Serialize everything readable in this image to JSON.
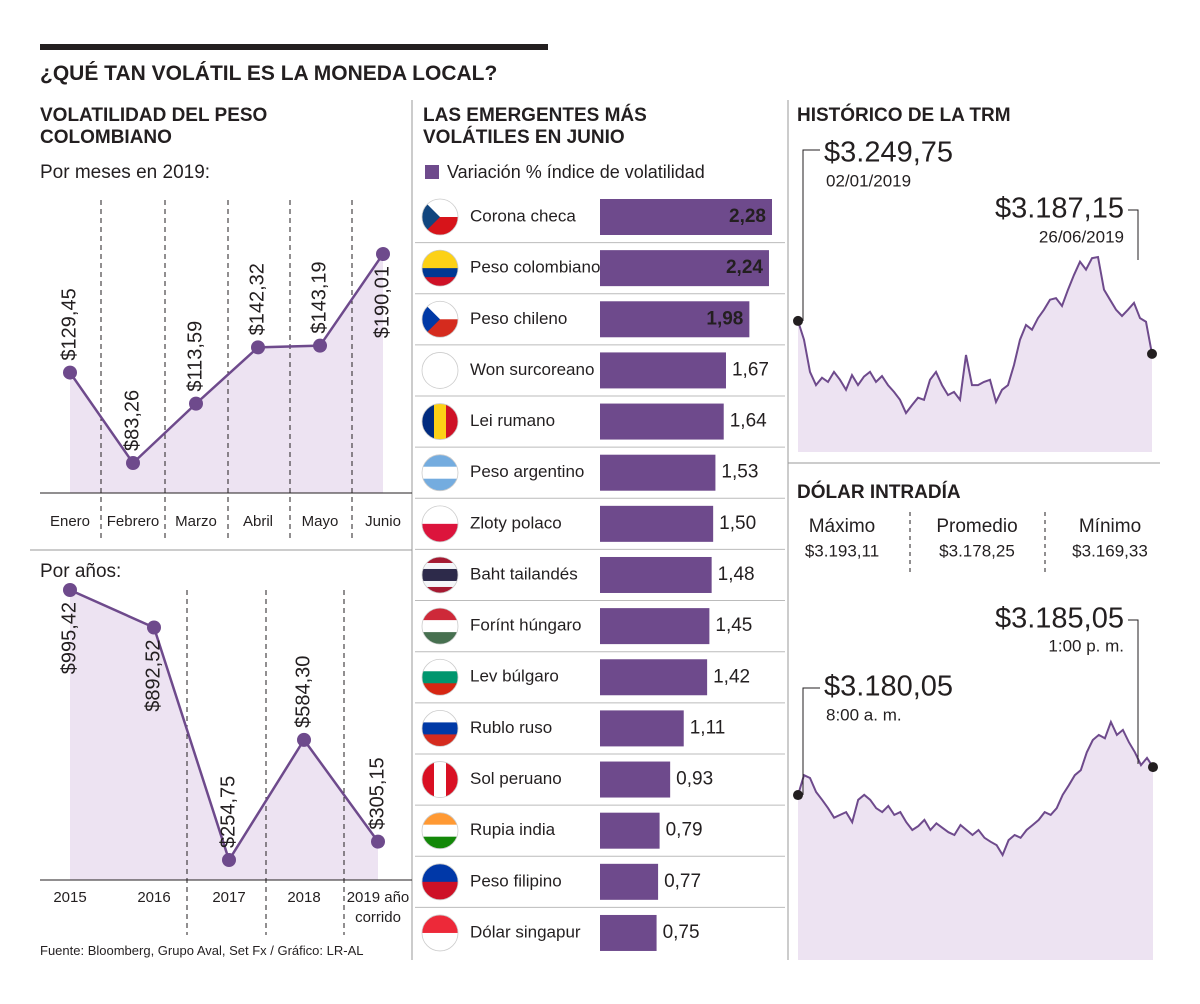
{
  "title": "¿QUÉ TAN VOLÁTIL ES LA MONEDA LOCAL?",
  "source": "Fuente: Bloomberg, Grupo Aval, Set Fx / Gráfico: LR-AL",
  "chart_data": [
    {
      "type": "line",
      "title": "VOLATILIDAD DEL PESO COLOMBIANO",
      "subtitle": "Por meses en 2019:",
      "categories": [
        "Enero",
        "Febrero",
        "Marzo",
        "Abril",
        "Mayo",
        "Junio"
      ],
      "values": [
        129.45,
        83.26,
        113.59,
        142.32,
        143.19,
        190.01
      ],
      "value_labels": [
        "$129,45",
        "$83,26",
        "$113,59",
        "$142,32",
        "$143,19",
        "$190,01"
      ],
      "color": "#6e4a8c"
    },
    {
      "type": "line",
      "subtitle": "Por años:",
      "categories": [
        "2015",
        "2016",
        "2017",
        "2018",
        "2019 año corrido"
      ],
      "values": [
        995.42,
        892.52,
        254.75,
        584.3,
        305.15
      ],
      "value_labels": [
        "$995,42",
        "$892,52",
        "$254,75",
        "$584,30",
        "$305,15"
      ],
      "color": "#6e4a8c"
    },
    {
      "type": "bar",
      "title": "LAS EMERGENTES MÁS VOLÁTILES EN JUNIO",
      "categories": [
        "Corona checa",
        "Peso colombiano",
        "Peso chileno",
        "Won surcoreano",
        "Lei rumano",
        "Peso argentino",
        "Zloty polaco",
        "Baht tailandés",
        "Forínt húngaro",
        "Lev búlgaro",
        "Rublo ruso",
        "Sol peruano",
        "Rupia india",
        "Peso filipino",
        "Dólar singapur"
      ],
      "series": [
        {
          "name": "Variación % índice de volatilidad",
          "color": "#6e4a8c",
          "values": [
            2.28,
            2.24,
            1.98,
            1.67,
            1.64,
            1.53,
            1.5,
            1.48,
            1.45,
            1.42,
            1.11,
            0.93,
            0.79,
            0.77,
            0.75
          ],
          "value_labels": [
            "2,28",
            "2,24",
            "1,98",
            "1,67",
            "1,64",
            "1,53",
            "1,50",
            "1,48",
            "1,45",
            "1,42",
            "1,11",
            "0,93",
            "0,79",
            "0,77",
            "0,75"
          ]
        }
      ]
    },
    {
      "type": "line",
      "title": "HISTÓRICO DE LA TRM",
      "color": "#6e4a8c",
      "values": [
        3249.75,
        3214,
        3153,
        3128,
        3142,
        3134,
        3153,
        3138,
        3119,
        3147,
        3128,
        3144,
        3153,
        3134,
        3145,
        3128,
        3115,
        3100,
        3075,
        3090,
        3104,
        3100,
        3138,
        3153,
        3128,
        3109,
        3115,
        3100,
        3185,
        3128,
        3128,
        3134,
        3138,
        3096,
        3119,
        3128,
        3166,
        3214,
        3242,
        3233,
        3255,
        3271,
        3290,
        3293,
        3278,
        3309,
        3337,
        3362,
        3347,
        3369,
        3371,
        3309,
        3290,
        3271,
        3259,
        3271,
        3284,
        3255,
        3248,
        3187.15
      ],
      "annotations": [
        {
          "value_label": "$3.249,75",
          "date": "02/01/2019"
        },
        {
          "value_label": "$3.187,15",
          "date": "26/06/2019"
        }
      ]
    },
    {
      "type": "line",
      "title": "DÓLAR INTRADÍA",
      "color": "#6e4a8c",
      "stats": [
        {
          "label": "Máximo",
          "value_label": "$3.193,11"
        },
        {
          "label": "Promedio",
          "value_label": "$3.178,25"
        },
        {
          "label": "Mínimo",
          "value_label": "$3.169,33"
        }
      ],
      "values": [
        3180.05,
        3183.6,
        3183.1,
        3180.6,
        3179.2,
        3177.7,
        3176.0,
        3176.5,
        3177.0,
        3175.2,
        3179.2,
        3180.1,
        3179.2,
        3177.7,
        3177.0,
        3178.1,
        3176.5,
        3177.0,
        3175.2,
        3173.8,
        3174.5,
        3175.6,
        3173.8,
        3175.0,
        3174.2,
        3173.4,
        3172.9,
        3174.7,
        3173.8,
        3172.9,
        3173.8,
        3172.4,
        3171.7,
        3171.1,
        3169.33,
        3172.0,
        3172.9,
        3172.4,
        3173.8,
        3174.7,
        3175.6,
        3177.0,
        3176.5,
        3177.7,
        3180.1,
        3181.8,
        3183.6,
        3184.5,
        3187.7,
        3189.9,
        3190.8,
        3190.2,
        3193.11,
        3190.8,
        3191.7,
        3189.5,
        3187.7,
        3185.4,
        3186.7,
        3185.05
      ],
      "annotations": [
        {
          "value_label": "$3.180,05",
          "time": "8:00 a. m."
        },
        {
          "value_label": "$3.185,05",
          "time": "1:00 p. m."
        }
      ]
    }
  ]
}
